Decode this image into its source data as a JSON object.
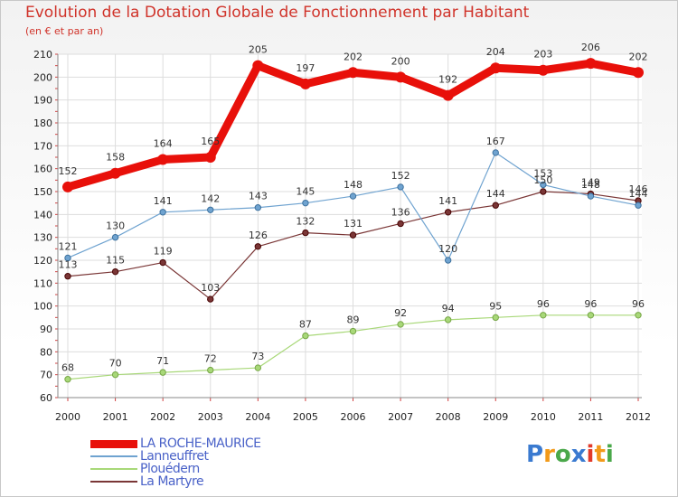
{
  "header": {
    "title": "Evolution de la Dotation Globale de Fonctionnement par Habitant",
    "subtitle": "(en € et par an)"
  },
  "chart_data": {
    "type": "line",
    "title": "Evolution de la Dotation Globale de Fonctionnement par Habitant",
    "ylabel": "(en € et par an)",
    "xlabel": "",
    "ylim": [
      60,
      210
    ],
    "yticks": [
      60,
      70,
      80,
      90,
      100,
      110,
      120,
      130,
      140,
      150,
      160,
      170,
      180,
      190,
      200,
      210
    ],
    "categories": [
      "2000",
      "2001",
      "2002",
      "2003",
      "2004",
      "2005",
      "2006",
      "2007",
      "2008",
      "2009",
      "2010",
      "2011",
      "2012"
    ],
    "series": [
      {
        "name": "LA ROCHE-MAURICE",
        "color": "#e8100a",
        "emphasis": true,
        "values": [
          152,
          158,
          164,
          165,
          205,
          197,
          202,
          200,
          192,
          204,
          203,
          206,
          202
        ]
      },
      {
        "name": "Lanneuffret",
        "color": "#6fa3d0",
        "values": [
          121,
          130,
          141,
          142,
          143,
          145,
          148,
          152,
          120,
          167,
          153,
          148,
          144
        ]
      },
      {
        "name": "Plouédern",
        "color": "#a8d878",
        "values": [
          68,
          70,
          71,
          72,
          73,
          87,
          89,
          92,
          94,
          95,
          96,
          96,
          96
        ]
      },
      {
        "name": "La Martyre",
        "color": "#7a3636",
        "values": [
          113,
          115,
          119,
          103,
          126,
          132,
          131,
          136,
          141,
          144,
          150,
          149,
          146
        ]
      }
    ],
    "legend_position": "bottom-left"
  },
  "logo": {
    "letters": [
      "P",
      "r",
      "o",
      "x",
      "i",
      "t",
      "i"
    ],
    "colors": [
      "#3a7ad0",
      "#f29a1a",
      "#4aa84a",
      "#3a7ad0",
      "#e23a2a",
      "#f29a1a",
      "#4aa84a"
    ]
  }
}
